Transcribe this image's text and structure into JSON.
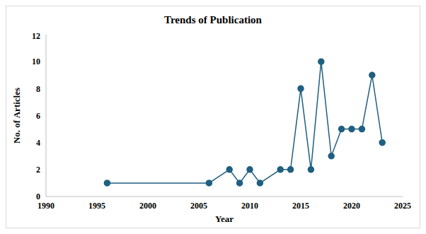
{
  "chart_data": {
    "type": "line",
    "title": "Trends of Publication",
    "x_label": "Year",
    "y_label": "No. of Articles",
    "x": [
      1996,
      2006,
      2008,
      2009,
      2010,
      2011,
      2013,
      2014,
      2015,
      2016,
      2017,
      2018,
      2019,
      2020,
      2021,
      2022,
      2023
    ],
    "values": [
      1,
      1,
      2,
      1,
      2,
      1,
      2,
      2,
      8,
      2,
      10,
      3,
      5,
      5,
      5,
      9,
      4
    ],
    "color": "#1f5f80",
    "xlim": [
      1990,
      2025
    ],
    "ylim": [
      0,
      12
    ],
    "xticks": [
      1990,
      1995,
      2000,
      2005,
      2010,
      2015,
      2020,
      2025
    ],
    "yticks": [
      0,
      2,
      4,
      6,
      8,
      10,
      12
    ],
    "grid": false,
    "marker": "circle"
  }
}
